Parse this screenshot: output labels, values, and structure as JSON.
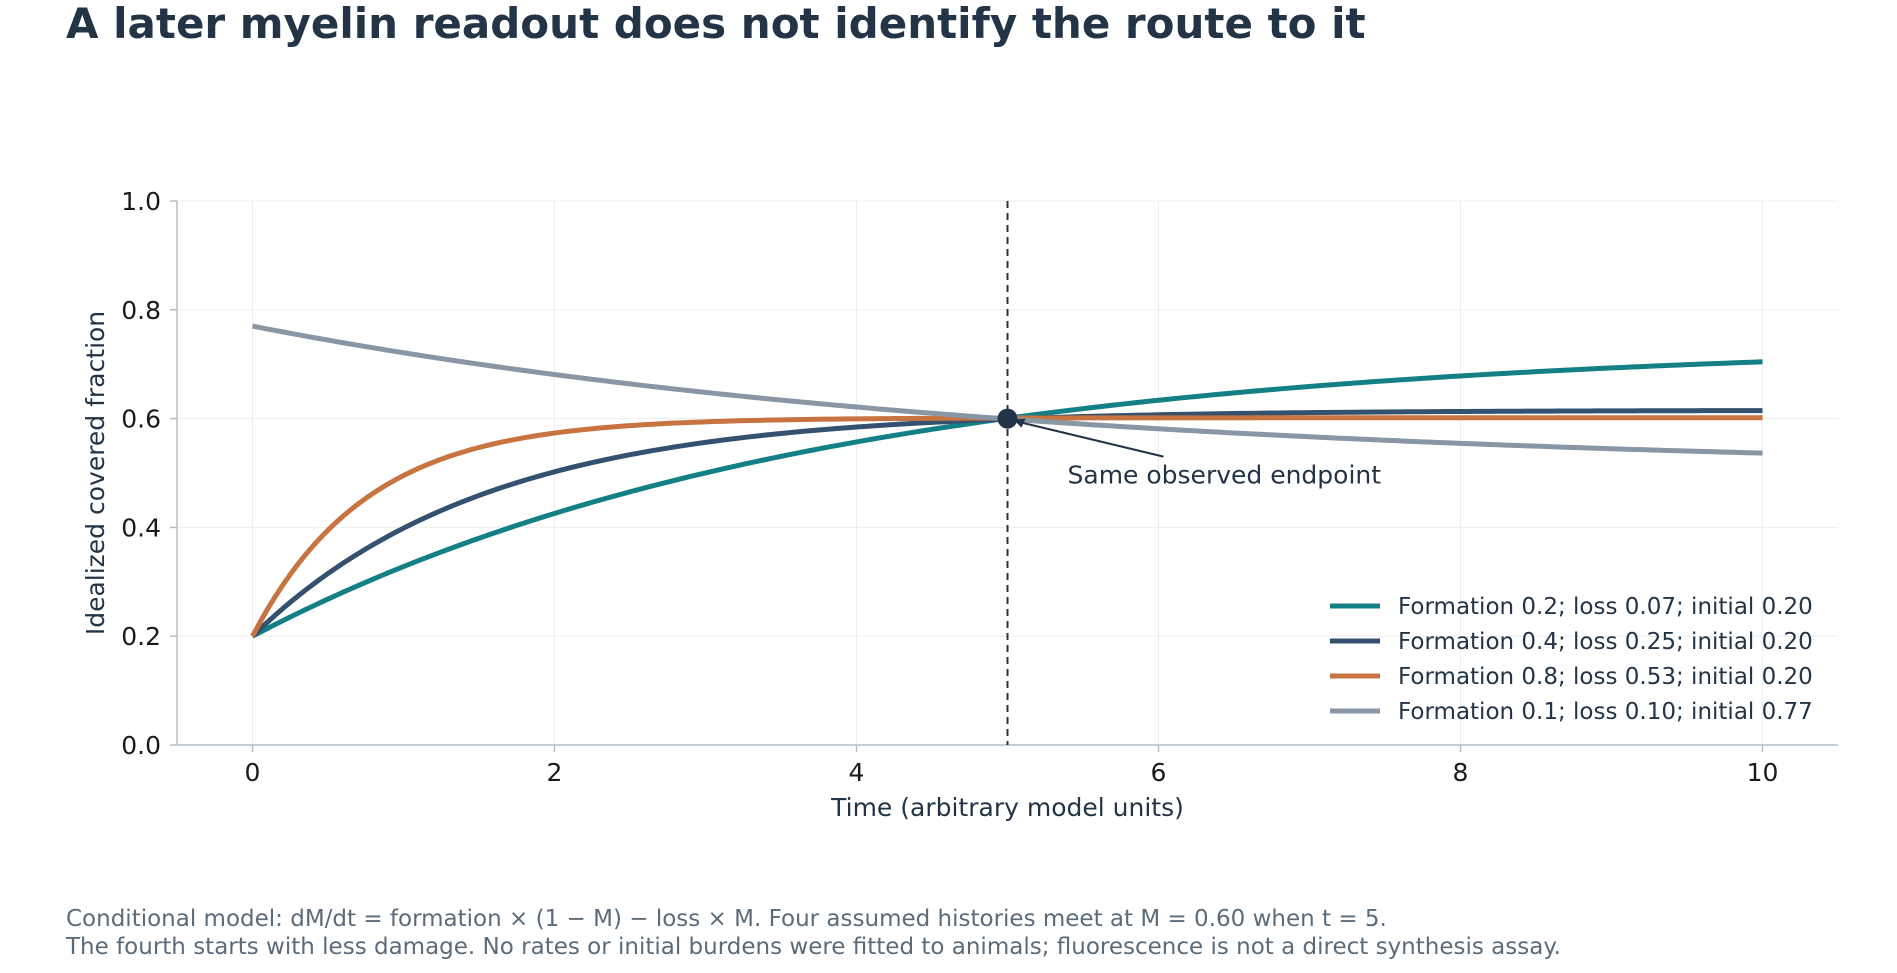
{
  "title": "A later myelin readout does not identify the route to it",
  "caption_lines": [
    "Conditional model: dM/dt = formation × (1 − M) − loss × M. Four assumed histories meet at M = 0.60 when t = 5.",
    "The fourth starts with less damage. No rates or initial burdens were fitted to animals; fluorescence is not a direct synthesis assay."
  ],
  "chart_data": {
    "type": "line",
    "xlabel": "Time (arbitrary model units)",
    "ylabel": "Idealized covered fraction",
    "xlim": [
      -0.5,
      10.5
    ],
    "ylim": [
      0.0,
      1.0
    ],
    "xticks": [
      0,
      2,
      4,
      6,
      8,
      10
    ],
    "yticks": [
      0.0,
      0.2,
      0.4,
      0.6,
      0.8,
      1.0
    ],
    "grid": true,
    "legend_position": "lower-right",
    "series": [
      {
        "name": "Formation 0.2; loss 0.07; initial 0.20",
        "formation": 0.2,
        "loss": 0.07,
        "initial": 0.2,
        "color": "#138086"
      },
      {
        "name": "Formation 0.4; loss 0.25; initial 0.20",
        "formation": 0.4,
        "loss": 0.25,
        "initial": 0.2,
        "color": "#34526f"
      },
      {
        "name": "Formation 0.8; loss 0.53; initial 0.20",
        "formation": 0.8,
        "loss": 0.53,
        "initial": 0.2,
        "color": "#c87441"
      },
      {
        "name": "Formation 0.1; loss 0.10; initial 0.77",
        "formation": 0.1,
        "loss": 0.1,
        "initial": 0.77,
        "color": "#8996a3"
      }
    ],
    "endpoint": {
      "x": 5,
      "y": 0.6,
      "label": "Same observed endpoint"
    },
    "vline_x": 5
  }
}
